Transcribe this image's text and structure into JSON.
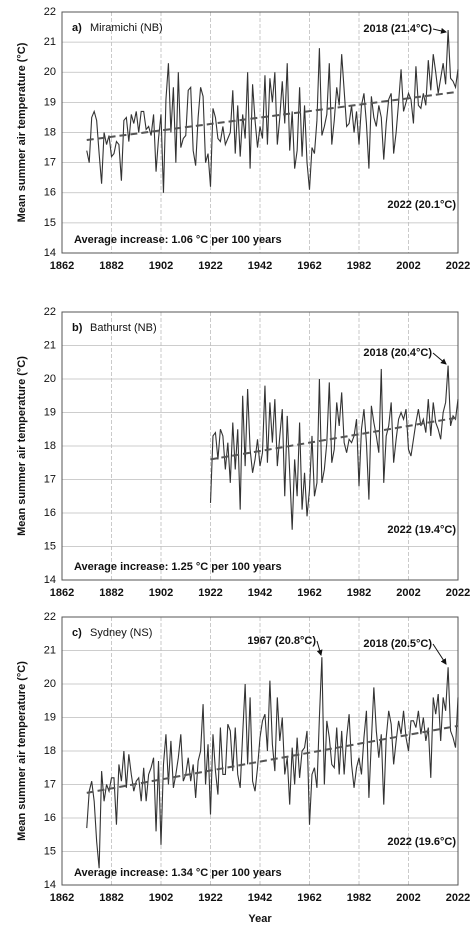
{
  "chart_data": [
    {
      "type": "line",
      "label": "a)",
      "title": "Miramichi (NB)",
      "ylabel": "Mean summer air temperature (°C)",
      "xlim": [
        1862,
        2022
      ],
      "ylim": [
        14,
        22
      ],
      "xticks": [
        1862,
        1882,
        1902,
        1922,
        1942,
        1962,
        1982,
        2002,
        2022
      ],
      "yticks": [
        14,
        15,
        16,
        17,
        18,
        19,
        20,
        21,
        22
      ],
      "grid": true,
      "series": [
        {
          "color": "#333333",
          "x": [
            1872,
            1873,
            1874,
            1875,
            1876,
            1877,
            1878,
            1879,
            1880,
            1881,
            1882,
            1883,
            1884,
            1885,
            1886,
            1887,
            1888,
            1889,
            1890,
            1891,
            1892,
            1893,
            1894,
            1895,
            1896,
            1897,
            1898,
            1899,
            1900,
            1901,
            1902,
            1903,
            1904,
            1905,
            1906,
            1907,
            1908,
            1909,
            1910,
            1911,
            1912,
            1913,
            1914,
            1915,
            1916,
            1917,
            1918,
            1919,
            1920,
            1921,
            1922,
            1923,
            1924,
            1925,
            1926,
            1927,
            1928,
            1929,
            1930,
            1931,
            1932,
            1933,
            1934,
            1935,
            1936,
            1937,
            1938,
            1939,
            1940,
            1941,
            1942,
            1943,
            1944,
            1945,
            1946,
            1947,
            1948,
            1949,
            1950,
            1951,
            1952,
            1953,
            1954,
            1955,
            1956,
            1957,
            1958,
            1959,
            1960,
            1961,
            1962,
            1963,
            1964,
            1965,
            1966,
            1967,
            1968,
            1969,
            1970,
            1971,
            1972,
            1973,
            1974,
            1975,
            1976,
            1977,
            1978,
            1979,
            1980,
            1981,
            1982,
            1983,
            1984,
            1985,
            1986,
            1987,
            1988,
            1989,
            1990,
            1991,
            1992,
            1993,
            1994,
            1995,
            1996,
            1997,
            1998,
            1999,
            2000,
            2001,
            2002,
            2003,
            2004,
            2005,
            2006,
            2007,
            2008,
            2009,
            2010,
            2011,
            2012,
            2013,
            2014,
            2015,
            2016,
            2017,
            2018,
            2019,
            2020,
            2021,
            2022
          ],
          "values": [
            17.4,
            17.0,
            18.5,
            18.7,
            18.4,
            17.3,
            16.3,
            18.0,
            17.6,
            17.9,
            17.2,
            17.3,
            17.7,
            17.6,
            16.4,
            18.4,
            18.5,
            17.7,
            18.6,
            18.3,
            18.7,
            18.0,
            18.7,
            18.7,
            18.1,
            18.2,
            17.9,
            18.6,
            16.7,
            17.8,
            18.6,
            16.0,
            19.1,
            20.3,
            18.0,
            19.5,
            17.0,
            20.0,
            17.5,
            17.8,
            17.9,
            19.4,
            19.5,
            17.4,
            16.9,
            18.5,
            19.5,
            19.2,
            17.0,
            17.3,
            16.2,
            18.8,
            18.5,
            17.8,
            17.7,
            18.2,
            17.6,
            17.8,
            18.0,
            19.4,
            17.3,
            18.9,
            17.2,
            18.6,
            17.8,
            20.0,
            16.8,
            19.6,
            18.4,
            17.5,
            18.2,
            17.8,
            19.9,
            17.6,
            19.8,
            19.0,
            20.0,
            17.6,
            18.5,
            19.7,
            18.3,
            20.3,
            17.4,
            18.7,
            16.8,
            17.4,
            19.5,
            17.2,
            18.9,
            17.0,
            16.1,
            17.5,
            17.3,
            18.4,
            20.8,
            17.9,
            18.2,
            18.6,
            20.3,
            17.6,
            18.4,
            19.5,
            18.9,
            20.6,
            19.4,
            18.2,
            18.3,
            18.9,
            18.0,
            18.7,
            17.6,
            18.9,
            19.3,
            18.3,
            16.8,
            19.2,
            18.5,
            18.2,
            18.9,
            18.5,
            17.1,
            18.3,
            19.1,
            19.3,
            17.3,
            18.0,
            19.0,
            20.1,
            18.7,
            19.0,
            19.3,
            19.1,
            18.3,
            20.2,
            18.9,
            18.8,
            19.3,
            18.9,
            20.4,
            19.4,
            20.6,
            20.0,
            19.3,
            19.8,
            20.3,
            19.6,
            21.4,
            19.8,
            19.7,
            19.5,
            20.1
          ]
        }
      ],
      "trend": {
        "color": "#555555",
        "x": [
          1872,
          2022
        ],
        "values": [
          17.75,
          19.35
        ]
      },
      "annotations": [
        "2018 (21.4°C)",
        "2022 (20.1°C)",
        "Average increase:  1.06 °C per 100 years"
      ]
    },
    {
      "type": "line",
      "label": "b)",
      "title": "Bathurst (NB)",
      "ylabel": "Mean summer air temperature (°C)",
      "xlim": [
        1862,
        2022
      ],
      "ylim": [
        14,
        22
      ],
      "xticks": [
        1862,
        1882,
        1902,
        1922,
        1942,
        1962,
        1982,
        2002,
        2022
      ],
      "yticks": [
        14,
        15,
        16,
        17,
        18,
        19,
        20,
        21,
        22
      ],
      "grid": true,
      "series": [
        {
          "color": "#333333",
          "x": [
            1922,
            1923,
            1924,
            1925,
            1926,
            1927,
            1928,
            1929,
            1930,
            1931,
            1932,
            1933,
            1934,
            1935,
            1936,
            1937,
            1938,
            1939,
            1940,
            1941,
            1942,
            1943,
            1944,
            1945,
            1946,
            1947,
            1948,
            1949,
            1950,
            1951,
            1952,
            1953,
            1954,
            1955,
            1956,
            1957,
            1958,
            1959,
            1960,
            1961,
            1962,
            1963,
            1964,
            1965,
            1966,
            1967,
            1968,
            1969,
            1970,
            1971,
            1972,
            1973,
            1974,
            1975,
            1976,
            1977,
            1978,
            1979,
            1980,
            1981,
            1982,
            1983,
            1984,
            1985,
            1986,
            1987,
            1988,
            1989,
            1990,
            1991,
            1992,
            1993,
            1994,
            1995,
            1996,
            1997,
            1998,
            1999,
            2000,
            2001,
            2002,
            2003,
            2004,
            2005,
            2006,
            2007,
            2008,
            2009,
            2010,
            2011,
            2012,
            2013,
            2014,
            2015,
            2016,
            2017,
            2018,
            2019,
            2020,
            2021,
            2022
          ],
          "values": [
            16.3,
            18.3,
            18.4,
            17.6,
            18.5,
            18.3,
            17.3,
            18.1,
            16.9,
            18.7,
            17.3,
            18.5,
            16.1,
            19.5,
            17.4,
            19.7,
            17.9,
            17.2,
            17.6,
            18.2,
            17.4,
            17.8,
            19.8,
            17.5,
            19.3,
            18.1,
            19.4,
            17.4,
            18.3,
            19.1,
            16.5,
            18.9,
            17.2,
            15.5,
            17.6,
            16.5,
            18.7,
            16.1,
            17.2,
            15.9,
            16.7,
            18.3,
            16.5,
            16.9,
            20.0,
            16.9,
            17.3,
            18.1,
            19.9,
            17.5,
            17.9,
            19.3,
            18.6,
            19.6,
            18.1,
            17.8,
            18.2,
            18.1,
            18.3,
            18.8,
            16.8,
            18.5,
            19.1,
            18.1,
            16.4,
            19.2,
            18.7,
            18.3,
            17.8,
            20.3,
            16.9,
            18.3,
            18.6,
            19.3,
            17.5,
            18.2,
            18.8,
            19.0,
            18.8,
            19.1,
            17.9,
            17.7,
            18.2,
            18.7,
            19.1,
            18.6,
            18.8,
            18.4,
            19.4,
            18.3,
            19.3,
            18.7,
            18.5,
            18.2,
            19.0,
            19.3,
            20.4,
            18.6,
            18.9,
            18.8,
            19.4
          ]
        }
      ],
      "trend": {
        "color": "#555555",
        "x": [
          1922,
          2022
        ],
        "values": [
          17.6,
          18.85
        ]
      },
      "annotations": [
        "2018 (20.4°C)",
        "2022 (19.4°C)",
        "Average increase: 1.25 °C per 100 years"
      ]
    },
    {
      "type": "line",
      "label": "c)",
      "title": "Sydney (NS)",
      "ylabel": "Mean summer air temperature (°C)",
      "xlabel": "Year",
      "xlim": [
        1862,
        2022
      ],
      "ylim": [
        14,
        22
      ],
      "xticks": [
        1862,
        1882,
        1902,
        1922,
        1942,
        1962,
        1982,
        2002,
        2022
      ],
      "yticks": [
        14,
        15,
        16,
        17,
        18,
        19,
        20,
        21,
        22
      ],
      "grid": true,
      "series": [
        {
          "color": "#333333",
          "x": [
            1872,
            1873,
            1874,
            1875,
            1876,
            1877,
            1878,
            1879,
            1880,
            1881,
            1882,
            1883,
            1884,
            1885,
            1886,
            1887,
            1888,
            1889,
            1890,
            1891,
            1892,
            1893,
            1894,
            1895,
            1896,
            1897,
            1898,
            1899,
            1900,
            1901,
            1902,
            1903,
            1904,
            1905,
            1906,
            1907,
            1908,
            1909,
            1910,
            1911,
            1912,
            1913,
            1914,
            1915,
            1916,
            1917,
            1918,
            1919,
            1920,
            1921,
            1922,
            1923,
            1924,
            1925,
            1926,
            1927,
            1928,
            1929,
            1930,
            1931,
            1932,
            1933,
            1934,
            1935,
            1936,
            1937,
            1938,
            1939,
            1940,
            1941,
            1942,
            1943,
            1944,
            1945,
            1946,
            1947,
            1948,
            1949,
            1950,
            1951,
            1952,
            1953,
            1954,
            1955,
            1956,
            1957,
            1958,
            1959,
            1960,
            1961,
            1962,
            1963,
            1964,
            1965,
            1966,
            1967,
            1968,
            1969,
            1970,
            1971,
            1972,
            1973,
            1974,
            1975,
            1976,
            1977,
            1978,
            1979,
            1980,
            1981,
            1982,
            1983,
            1984,
            1985,
            1986,
            1987,
            1988,
            1989,
            1990,
            1991,
            1992,
            1993,
            1994,
            1995,
            1996,
            1997,
            1998,
            1999,
            2000,
            2001,
            2002,
            2003,
            2004,
            2005,
            2006,
            2007,
            2008,
            2009,
            2010,
            2011,
            2012,
            2013,
            2014,
            2015,
            2016,
            2017,
            2018,
            2019,
            2020,
            2021,
            2022
          ],
          "values": [
            15.7,
            16.8,
            17.1,
            16.5,
            15.3,
            14.5,
            17.4,
            16.5,
            17.0,
            16.8,
            17.2,
            17.2,
            15.8,
            17.6,
            17.1,
            18.0,
            16.9,
            17.9,
            17.3,
            16.8,
            17.1,
            17.2,
            16.5,
            17.5,
            16.5,
            17.3,
            17.5,
            17.8,
            15.6,
            17.7,
            15.2,
            17.6,
            18.5,
            17.0,
            18.3,
            16.9,
            17.3,
            17.8,
            18.5,
            17.1,
            17.3,
            17.8,
            17.1,
            17.6,
            16.6,
            17.7,
            18.0,
            19.4,
            17.0,
            18.2,
            16.1,
            18.5,
            17.4,
            16.7,
            18.7,
            17.3,
            17.3,
            18.8,
            18.6,
            17.4,
            18.7,
            17.3,
            16.9,
            18.5,
            20.0,
            17.6,
            19.6,
            17.1,
            16.8,
            17.5,
            18.4,
            18.9,
            19.1,
            18.0,
            20.1,
            18.2,
            17.4,
            19.6,
            18.3,
            19.0,
            17.3,
            17.8,
            16.4,
            18.1,
            17.0,
            18.4,
            17.2,
            18.0,
            18.1,
            18.6,
            15.8,
            17.3,
            17.5,
            16.9,
            19.0,
            20.8,
            17.0,
            18.9,
            18.4,
            17.6,
            17.5,
            18.7,
            17.3,
            18.6,
            17.3,
            18.4,
            19.1,
            17.6,
            16.9,
            17.5,
            17.8,
            17.3,
            18.4,
            19.2,
            16.6,
            18.3,
            19.9,
            18.6,
            17.8,
            18.5,
            16.4,
            18.4,
            19.2,
            18.8,
            17.6,
            18.3,
            18.9,
            18.5,
            19.2,
            18.4,
            18.0,
            18.9,
            18.9,
            18.7,
            19.2,
            18.5,
            19.0,
            18.3,
            18.7,
            17.2,
            19.6,
            19.1,
            19.7,
            18.3,
            19.6,
            19.2,
            20.5,
            18.6,
            18.4,
            18.1,
            19.6
          ]
        }
      ],
      "trend": {
        "color": "#555555",
        "x": [
          1872,
          2022
        ],
        "values": [
          16.75,
          18.75
        ]
      },
      "annotations": [
        "1967 (20.8°C)",
        "2018 (20.5°C)",
        "2022 (19.6°C)",
        "Average increase: 1.34 °C per 100 years"
      ]
    }
  ]
}
